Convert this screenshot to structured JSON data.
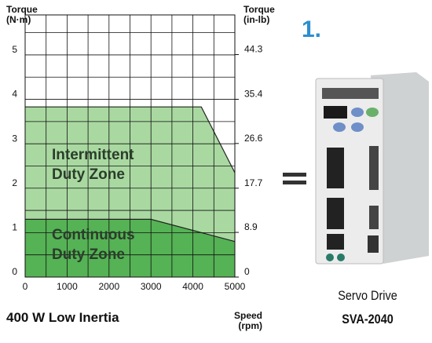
{
  "chart_data": {
    "type": "area",
    "title": "400 W Low Inertia",
    "y_label": "Torque (N·m)",
    "y2_label": "Torque (in-lb)",
    "x_label": "Speed (rpm)",
    "series": [
      {
        "name": "Intermittent Duty Zone",
        "color": "#a9d9a1",
        "x": [
          0,
          4200,
          5000
        ],
        "values": [
          3.83,
          3.83,
          2.35
        ]
      },
      {
        "name": "Continuous Duty Zone",
        "color": "#55b255",
        "x": [
          0,
          3000,
          5000
        ],
        "values": [
          1.3,
          1.3,
          0.8
        ]
      }
    ],
    "xlim": [
      0,
      5000
    ],
    "xticks": [
      0,
      1000,
      2000,
      3000,
      4000,
      5000
    ],
    "ylim": [
      0,
      5.9
    ],
    "yticks": [
      0,
      1,
      2,
      3,
      4,
      5
    ],
    "y2lim": [
      0,
      52.2
    ],
    "y2ticks": [
      0,
      8.9,
      17.7,
      26.6,
      35.4,
      44.3
    ],
    "grid": true
  },
  "product": {
    "step": "1.",
    "name": "Servo Drive",
    "model": "SVA-2040"
  }
}
